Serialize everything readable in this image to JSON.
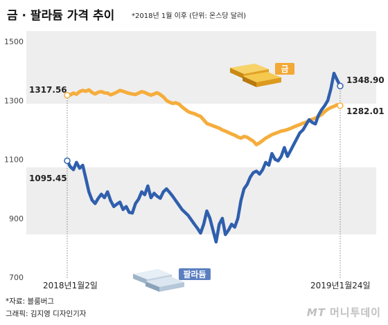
{
  "chart_data": {
    "type": "line",
    "title": "금 · 팔라듐 가격 추이",
    "subtitle": "*2018년 1월 이후 (단위: 온스당 달러)",
    "ylim": [
      700,
      1500
    ],
    "yticks": [
      "1500",
      "1300",
      "1100",
      "900",
      "700"
    ],
    "xlabels": [
      "2018년1월2일",
      "2019년1월24일"
    ],
    "grid": false,
    "series": [
      {
        "name": "금",
        "color": "#f5ad3c",
        "values": [
          1317.56,
          1319,
          1325,
          1321,
          1330,
          1334,
          1331,
          1336,
          1327,
          1322,
          1328,
          1330,
          1326,
          1325,
          1319,
          1323,
          1328,
          1334,
          1331,
          1327,
          1324,
          1322,
          1320,
          1325,
          1330,
          1327,
          1322,
          1318,
          1322,
          1326,
          1320,
          1312,
          1300,
          1294,
          1290,
          1292,
          1288,
          1278,
          1270,
          1262,
          1258,
          1255,
          1250,
          1246,
          1234,
          1222,
          1218,
          1214,
          1210,
          1206,
          1200,
          1196,
          1191,
          1186,
          1182,
          1176,
          1172,
          1178,
          1175,
          1168,
          1162,
          1150,
          1156,
          1164,
          1172,
          1178,
          1184,
          1188,
          1192,
          1196,
          1198,
          1201,
          1205,
          1210,
          1214,
          1218,
          1223,
          1226,
          1232,
          1236,
          1240,
          1246,
          1252,
          1262,
          1270,
          1276,
          1280,
          1285,
          1282.01
        ]
      },
      {
        "name": "팔라듐",
        "color": "#2f5fad",
        "values": [
          1095.45,
          1075,
          1065,
          1090,
          1070,
          1080,
          1035,
          990,
          962,
          950,
          968,
          982,
          970,
          990,
          960,
          940,
          948,
          955,
          930,
          940,
          920,
          918,
          950,
          965,
          990,
          980,
          1010,
          970,
          985,
          975,
          968,
          990,
          1000,
          988,
          975,
          960,
          945,
          930,
          920,
          910,
          895,
          880,
          866,
          850,
          880,
          925,
          900,
          860,
          820,
          880,
          900,
          845,
          860,
          880,
          870,
          900,
          960,
          1000,
          1015,
          1040,
          1055,
          1060,
          1050,
          1065,
          1090,
          1080,
          1120,
          1100,
          1095,
          1110,
          1140,
          1110,
          1130,
          1150,
          1170,
          1190,
          1200,
          1218,
          1235,
          1225,
          1220,
          1250,
          1268,
          1282,
          1300,
          1340,
          1392,
          1370,
          1348.9
        ]
      }
    ],
    "annotations": {
      "gold_start": "1317.56",
      "gold_end": "1282.01",
      "pall_start": "1095.45",
      "pall_end": "1348.90"
    },
    "colors": {
      "band": "#eeeeee",
      "axis": "#888888",
      "label_bg": "#f2a935",
      "pall_label_bg": "#5b7fc0"
    }
  },
  "footer": {
    "source": "*자료: 블룸버그",
    "credit": "그래픽: 김지영 디자인기자",
    "watermark_logo": "MT",
    "watermark_text": "머니투데이"
  }
}
